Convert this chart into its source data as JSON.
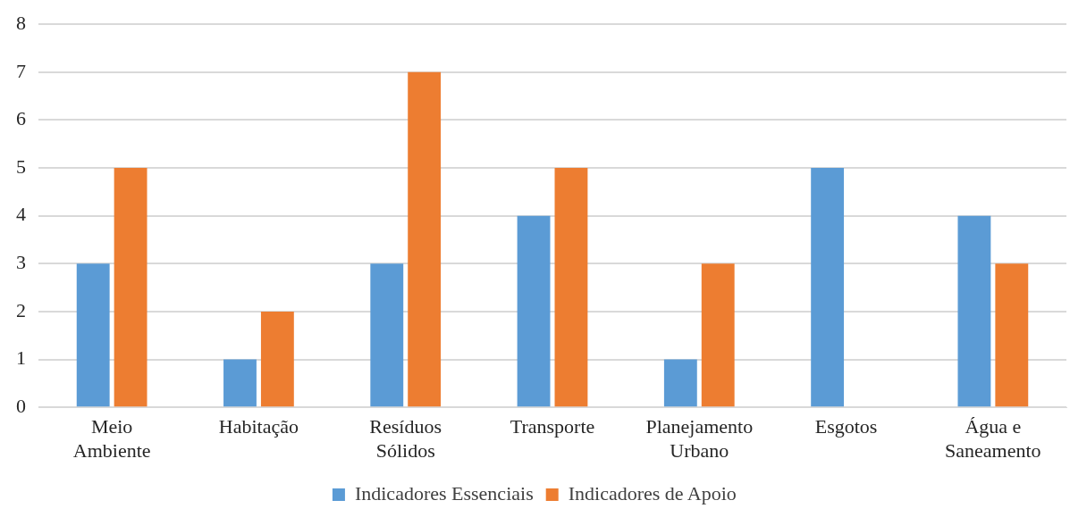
{
  "chart_data": {
    "type": "bar",
    "categories": [
      "Meio Ambiente",
      "Habitação",
      "Resíduos Sólidos",
      "Transporte",
      "Planejamento Urbano",
      "Esgotos",
      "Água e Saneamento"
    ],
    "series": [
      {
        "name": "Indicadores Essenciais",
        "color": "#5b9bd5",
        "values": [
          3,
          1,
          3,
          4,
          1,
          5,
          4
        ]
      },
      {
        "name": "Indicadores de Apoio",
        "color": "#ed7d31",
        "values": [
          5,
          2,
          7,
          5,
          3,
          0,
          3
        ]
      }
    ],
    "ylim": [
      0,
      8
    ],
    "yticks": [
      0,
      1,
      2,
      3,
      4,
      5,
      6,
      7,
      8
    ],
    "grid": "y",
    "legend": "bottom"
  }
}
